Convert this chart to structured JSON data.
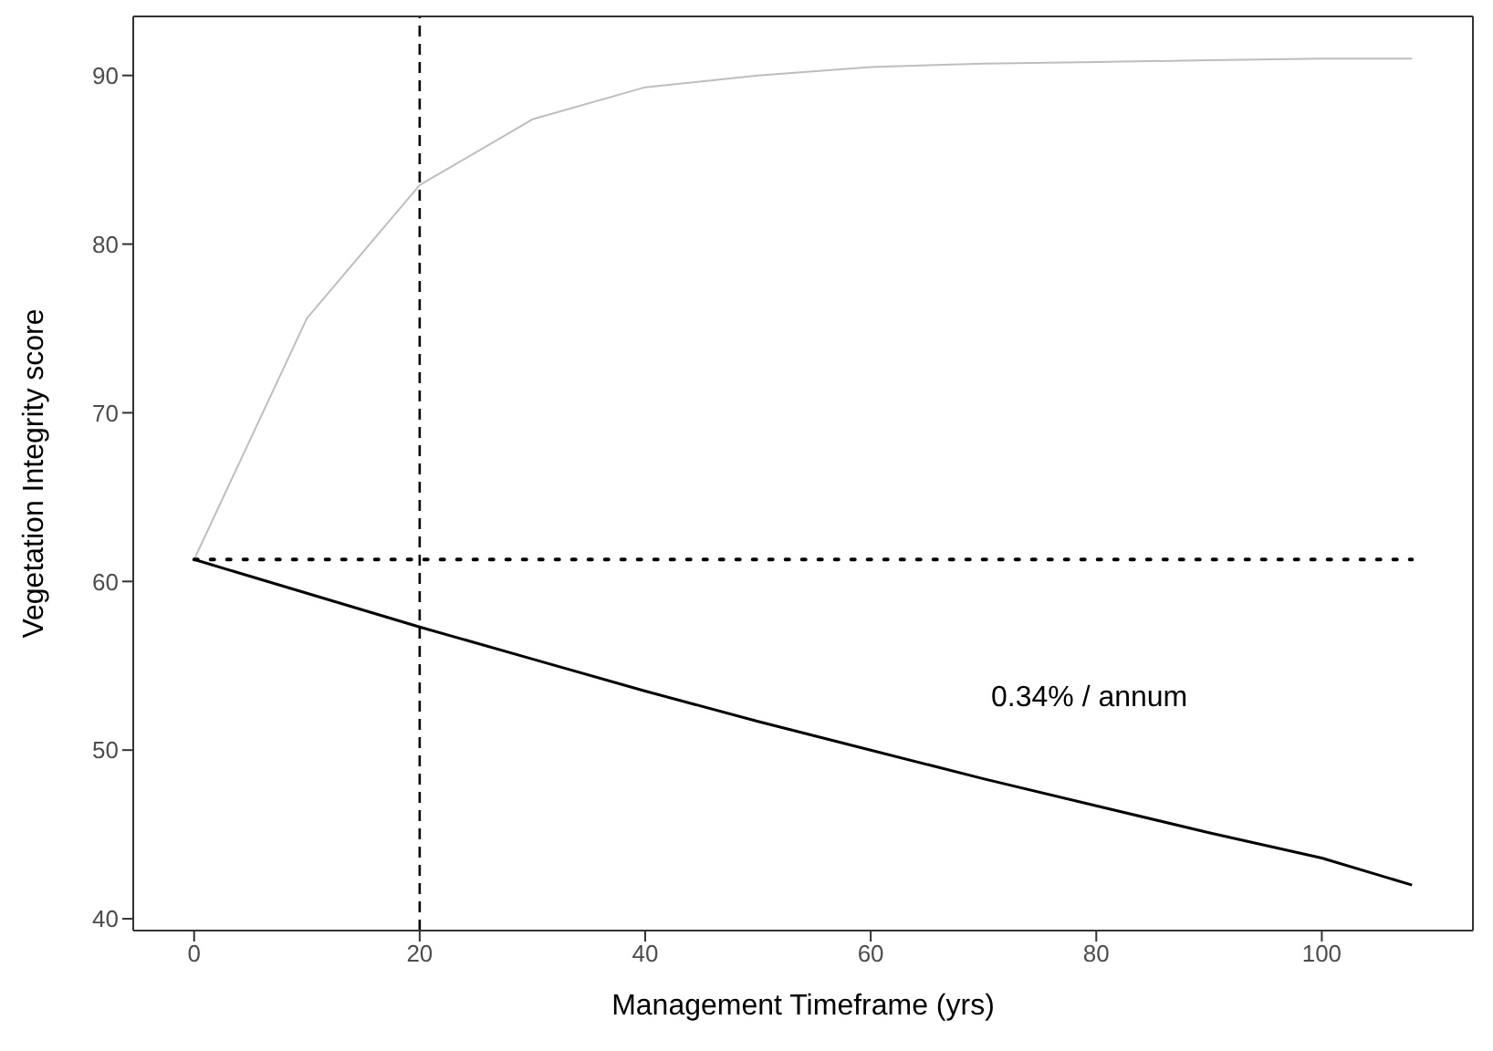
{
  "chart_data": {
    "type": "line",
    "xlabel": "Management Timeframe (yrs)",
    "ylabel": "Vegetation Integrity score",
    "x": [
      0,
      10,
      20,
      30,
      40,
      50,
      60,
      70,
      80,
      90,
      100,
      108
    ],
    "series": [
      {
        "color": "#bebebe",
        "values": [
          61.3,
          75.6,
          83.5,
          87.4,
          89.3,
          90.0,
          90.5,
          90.7,
          90.8,
          90.9,
          91.0,
          91.0
        ]
      },
      {
        "color": "#000000",
        "values": [
          61.3,
          59.3,
          57.3,
          55.4,
          53.5,
          51.7,
          50.0,
          48.3,
          46.7,
          45.1,
          43.6,
          42.0
        ]
      }
    ],
    "xlim": [
      -5.4,
      113.4
    ],
    "xticks": [
      0,
      20,
      40,
      60,
      80,
      100
    ],
    "ylim": [
      39.3,
      93.5
    ],
    "yticks": [
      40,
      50,
      60,
      70,
      80,
      90
    ],
    "marker": "none",
    "line_style": "solid",
    "ref_lines": [
      {
        "axis": "x",
        "value": 20,
        "color": "#000000",
        "line_style": "dashed"
      },
      {
        "axis": "y",
        "value": 61.3,
        "color": "#000000",
        "line_style": "dotted"
      }
    ],
    "annotations": [
      "0.34% / annum"
    ]
  }
}
